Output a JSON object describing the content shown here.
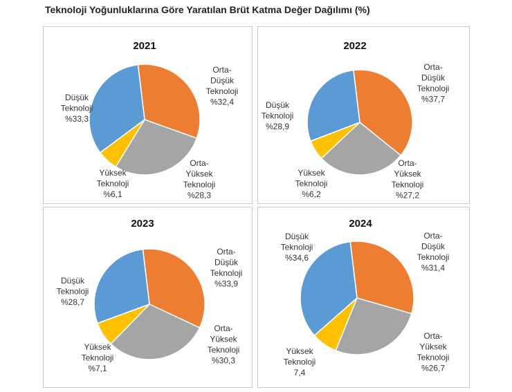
{
  "title": "Teknoloji Yoğunluklarına Göre Yaratılan Brüt Katma Değer Dağılımı (%)",
  "colors": {
    "orta_dusuk": "#ED7D31",
    "orta_yuksek": "#A5A5A5",
    "yuksek": "#FFC000",
    "dusuk": "#5B9BD5"
  },
  "chart_data": [
    {
      "type": "pie",
      "title": "2021",
      "slices": [
        {
          "key": "orta_dusuk",
          "label_lines": [
            "Orta-",
            "Düşük",
            "Teknoloji",
            "%32,4"
          ],
          "value": 32.4
        },
        {
          "key": "orta_yuksek",
          "label_lines": [
            "Orta-",
            "Yüksek",
            "Teknoloji",
            "%28,3"
          ],
          "value": 28.3
        },
        {
          "key": "yuksek",
          "label_lines": [
            "Yüksek",
            "Teknoloji",
            "%6,1"
          ],
          "value": 6.1
        },
        {
          "key": "dusuk",
          "label_lines": [
            "Düşük",
            "Teknoloji",
            "%33,3"
          ],
          "value": 33.3
        }
      ]
    },
    {
      "type": "pie",
      "title": "2022",
      "slices": [
        {
          "key": "orta_dusuk",
          "label_lines": [
            "Orta-",
            "Düşük",
            "Teknoloji",
            "%37,7"
          ],
          "value": 37.7
        },
        {
          "key": "orta_yuksek",
          "label_lines": [
            "Orta-",
            "Yüksek",
            "Teknoloji",
            "%27,2"
          ],
          "value": 27.2
        },
        {
          "key": "yuksek",
          "label_lines": [
            "Yüksek",
            "Teknoloji",
            "%6,2"
          ],
          "value": 6.2
        },
        {
          "key": "dusuk",
          "label_lines": [
            "Düşük",
            "Teknoloji",
            "%28,9"
          ],
          "value": 28.9
        }
      ]
    },
    {
      "type": "pie",
      "title": "2023",
      "slices": [
        {
          "key": "orta_dusuk",
          "label_lines": [
            "Orta-",
            "Düşük",
            "Teknoloji",
            "%33,9"
          ],
          "value": 33.9
        },
        {
          "key": "orta_yuksek",
          "label_lines": [
            "Orta-",
            "Yüksek",
            "Teknoloji",
            "%30,3"
          ],
          "value": 30.3
        },
        {
          "key": "yuksek",
          "label_lines": [
            "Yüksek",
            "Teknoloji",
            "%7,1"
          ],
          "value": 7.1
        },
        {
          "key": "dusuk",
          "label_lines": [
            "Düşük",
            "Teknoloji",
            "%28,7"
          ],
          "value": 28.7
        }
      ]
    },
    {
      "type": "pie",
      "title": "2024",
      "slices": [
        {
          "key": "orta_dusuk",
          "label_lines": [
            "Orta-",
            "Düşük",
            "Teknoloji",
            "%31,4"
          ],
          "value": 31.4
        },
        {
          "key": "orta_yuksek",
          "label_lines": [
            "Orta-",
            "Yüksek",
            "Teknoloji",
            "%26,7"
          ],
          "value": 26.7
        },
        {
          "key": "yuksek",
          "label_lines": [
            "Yüksek",
            "Teknoloji",
            "7,4"
          ],
          "value": 7.4
        },
        {
          "key": "dusuk",
          "label_lines": [
            "Düşük",
            "Teknoloji",
            "%34,6"
          ],
          "value": 34.6
        }
      ]
    }
  ]
}
